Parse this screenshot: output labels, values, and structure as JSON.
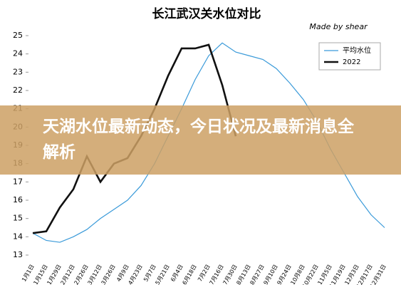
{
  "chart_data": {
    "type": "line",
    "title": "长江武汉关水位对比",
    "subtitle": "Made by shear",
    "categories": [
      "1月1日",
      "1月15日",
      "1月29日",
      "2月12日",
      "2月26日",
      "3月12日",
      "3月26日",
      "4月9日",
      "4月23日",
      "5月7日",
      "5月21日",
      "6月4日",
      "6月18日",
      "7月2日",
      "7月16日",
      "7月30日",
      "8月13日",
      "8月27日",
      "9月10日",
      "9月24日",
      "10月8日",
      "10月22日",
      "11月5日",
      "11月19日",
      "12月3日",
      "12月17日",
      "12月31日"
    ],
    "series": [
      {
        "name": "平均水位",
        "color": "#3a9ad9",
        "values": [
          14.2,
          13.8,
          13.7,
          14.0,
          14.4,
          15.0,
          15.5,
          16.0,
          16.8,
          18.0,
          19.5,
          21.0,
          22.6,
          23.9,
          24.6,
          24.1,
          23.9,
          23.7,
          23.2,
          22.4,
          21.5,
          20.3,
          18.8,
          17.5,
          16.2,
          15.2,
          14.5
        ]
      },
      {
        "name": "2022",
        "color": "#111111",
        "values": [
          14.2,
          14.3,
          15.6,
          16.6,
          18.4,
          17.0,
          18.0,
          18.3,
          19.5,
          21.0,
          22.8,
          24.3,
          24.3,
          24.5,
          22.3,
          19.5,
          null,
          null,
          null,
          null,
          null,
          null,
          null,
          null,
          null,
          null,
          null
        ]
      }
    ],
    "ylim": [
      13,
      25
    ],
    "yticks": [
      13,
      14,
      15,
      16,
      17,
      18,
      19,
      20,
      21,
      22,
      23,
      24,
      25
    ],
    "legend": "upper right",
    "grid": false
  },
  "banner": {
    "text": "天湖水位最新动态，今日状况及最新消息全解析"
  }
}
